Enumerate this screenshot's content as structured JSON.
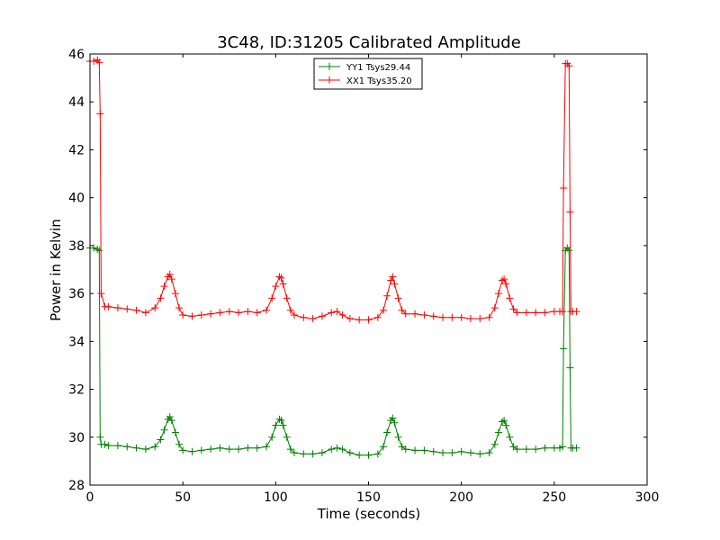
{
  "chart_data": {
    "type": "line",
    "title": "3C48, ID:31205 Calibrated Amplitude",
    "xlabel": "Time (seconds)",
    "ylabel": "Power in Kelvin",
    "xlim": [
      0,
      300
    ],
    "ylim": [
      28,
      46
    ],
    "xticks": [
      "0",
      "50",
      "100",
      "150",
      "200",
      "250",
      "300"
    ],
    "yticks": [
      "28",
      "30",
      "32",
      "34",
      "36",
      "38",
      "40",
      "42",
      "44",
      "46"
    ],
    "grid": false,
    "legend_position": "top-center",
    "marker": "+",
    "series": [
      {
        "name": "YY1 Tsys29.44",
        "color": "#008000",
        "x": [
          0,
          2,
          4,
          5,
          5.5,
          6,
          8,
          10,
          15,
          20,
          25,
          30,
          35,
          38,
          40,
          42,
          43,
          44,
          46,
          48,
          50,
          55,
          60,
          65,
          70,
          75,
          80,
          85,
          90,
          95,
          98,
          100,
          102,
          103,
          104,
          106,
          108,
          110,
          115,
          120,
          125,
          130,
          133,
          136,
          140,
          145,
          150,
          155,
          158,
          160,
          162,
          163,
          164,
          166,
          168,
          170,
          175,
          180,
          185,
          190,
          195,
          200,
          205,
          210,
          215,
          218,
          220,
          222,
          223,
          224,
          226,
          228,
          230,
          235,
          240,
          245,
          250,
          253,
          254.5,
          255,
          256,
          257,
          258,
          258.5,
          259,
          260,
          262
        ],
        "y": [
          37.9,
          37.9,
          37.85,
          37.8,
          30.0,
          29.7,
          29.7,
          29.65,
          29.65,
          29.6,
          29.55,
          29.5,
          29.6,
          29.9,
          30.3,
          30.75,
          30.85,
          30.7,
          30.2,
          29.7,
          29.45,
          29.4,
          29.45,
          29.5,
          29.55,
          29.5,
          29.5,
          29.55,
          29.55,
          29.6,
          30.0,
          30.5,
          30.75,
          30.7,
          30.5,
          30.0,
          29.5,
          29.35,
          29.3,
          29.3,
          29.35,
          29.5,
          29.55,
          29.5,
          29.35,
          29.25,
          29.25,
          29.3,
          29.6,
          30.2,
          30.7,
          30.8,
          30.6,
          30.0,
          29.6,
          29.5,
          29.45,
          29.45,
          29.4,
          29.35,
          29.35,
          29.4,
          29.35,
          29.3,
          29.35,
          29.7,
          30.2,
          30.65,
          30.7,
          30.5,
          30.0,
          29.6,
          29.5,
          29.5,
          29.5,
          29.55,
          29.55,
          29.55,
          29.6,
          33.7,
          37.8,
          37.9,
          37.8,
          32.9,
          29.55,
          29.55,
          29.55
        ]
      },
      {
        "name": "XX1 Tsys35.20",
        "color": "#ff0000",
        "x": [
          0,
          2,
          4,
          5,
          5.5,
          6,
          8,
          10,
          15,
          20,
          25,
          30,
          35,
          38,
          40,
          42,
          43,
          44,
          46,
          48,
          50,
          55,
          60,
          65,
          70,
          75,
          80,
          85,
          90,
          95,
          98,
          100,
          102,
          103,
          104,
          106,
          108,
          110,
          115,
          120,
          125,
          130,
          133,
          136,
          140,
          145,
          150,
          155,
          158,
          160,
          162,
          163,
          164,
          166,
          168,
          170,
          175,
          180,
          185,
          190,
          195,
          200,
          205,
          210,
          215,
          218,
          220,
          222,
          223,
          224,
          226,
          228,
          230,
          235,
          240,
          245,
          250,
          253,
          254.5,
          255,
          256,
          257,
          258,
          258.5,
          259,
          260,
          262
        ],
        "y": [
          45.7,
          45.7,
          45.75,
          45.65,
          43.5,
          36.0,
          35.45,
          35.45,
          35.4,
          35.35,
          35.3,
          35.2,
          35.4,
          35.8,
          36.3,
          36.7,
          36.8,
          36.6,
          36.0,
          35.4,
          35.1,
          35.05,
          35.1,
          35.15,
          35.2,
          35.25,
          35.2,
          35.25,
          35.2,
          35.3,
          35.8,
          36.3,
          36.7,
          36.65,
          36.4,
          35.8,
          35.3,
          35.1,
          35.0,
          34.95,
          35.05,
          35.2,
          35.25,
          35.1,
          34.95,
          34.9,
          34.9,
          35.0,
          35.3,
          35.9,
          36.55,
          36.7,
          36.4,
          35.8,
          35.3,
          35.15,
          35.15,
          35.1,
          35.05,
          35.0,
          35.0,
          35.0,
          34.95,
          34.95,
          35.0,
          35.4,
          36.0,
          36.55,
          36.6,
          36.4,
          35.8,
          35.35,
          35.2,
          35.2,
          35.2,
          35.2,
          35.25,
          35.25,
          35.25,
          40.4,
          45.6,
          45.6,
          45.5,
          39.4,
          35.25,
          35.25,
          35.25
        ]
      }
    ]
  }
}
